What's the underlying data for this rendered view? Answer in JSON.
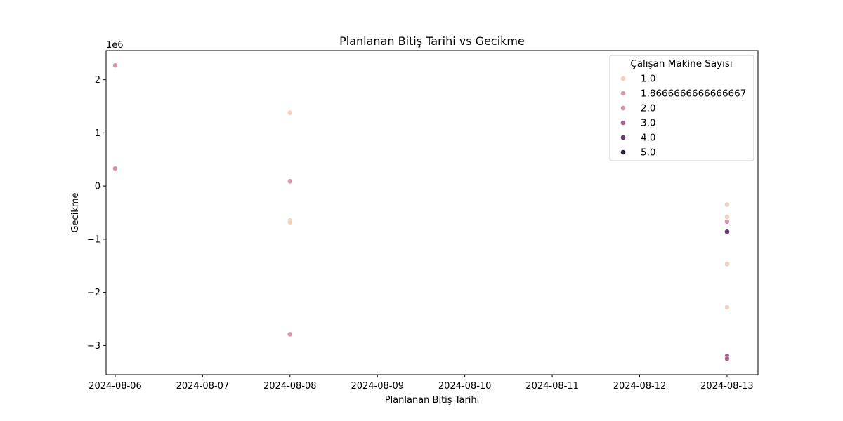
{
  "chart_data": {
    "type": "scatter",
    "title": "Planlanan Bitiş Tarihi vs Gecikme",
    "xlabel": "Planlanan Bitiş Tarihi",
    "ylabel": "Gecikme",
    "y_offset_label": "1e6",
    "x_ticks": [
      "2024-08-06",
      "2024-08-07",
      "2024-08-08",
      "2024-08-09",
      "2024-08-10",
      "2024-08-11",
      "2024-08-12",
      "2024-08-13"
    ],
    "y_ticks": [
      2,
      1,
      0,
      -1,
      -2,
      -3
    ],
    "y_tick_labels": [
      "2",
      "1",
      "0",
      "−1",
      "−2",
      "−3"
    ],
    "xlim": [
      "2024-08-05 21:30",
      "2024-08-13 08:30"
    ],
    "ylim": [
      -3.55,
      2.55
    ],
    "y_scale": "1e6",
    "grid": false,
    "legend": {
      "title": "Çalışan Makine Sayısı",
      "placement": "top-right",
      "entries": [
        {
          "label": "1.0",
          "color": "#efcfbe"
        },
        {
          "label": "1.8666666666666667",
          "color": "#d69aad"
        },
        {
          "label": "2.0",
          "color": "#d493ad"
        },
        {
          "label": "3.0",
          "color": "#a9628f"
        },
        {
          "label": "4.0",
          "color": "#6a3870"
        },
        {
          "label": "5.0",
          "color": "#2e1e3b"
        }
      ]
    },
    "points": [
      {
        "x": "2024-08-06",
        "y": 2.27,
        "hue": "1.8666666666666667"
      },
      {
        "x": "2024-08-06",
        "y": 0.33,
        "hue": "2.0"
      },
      {
        "x": "2024-08-08",
        "y": 1.38,
        "hue": "1.0"
      },
      {
        "x": "2024-08-08",
        "y": 0.09,
        "hue": "2.0"
      },
      {
        "x": "2024-08-08",
        "y": -0.65,
        "hue": "1.0"
      },
      {
        "x": "2024-08-08",
        "y": -0.68,
        "hue": "1.0"
      },
      {
        "x": "2024-08-08",
        "y": -2.79,
        "hue": "2.0"
      },
      {
        "x": "2024-08-13",
        "y": -0.35,
        "hue": "1.0"
      },
      {
        "x": "2024-08-13",
        "y": -0.58,
        "hue": "1.0"
      },
      {
        "x": "2024-08-13",
        "y": -0.67,
        "hue": "2.0"
      },
      {
        "x": "2024-08-13",
        "y": -0.86,
        "hue": "4.0"
      },
      {
        "x": "2024-08-13",
        "y": -1.47,
        "hue": "1.0"
      },
      {
        "x": "2024-08-13",
        "y": -2.28,
        "hue": "1.0"
      },
      {
        "x": "2024-08-13",
        "y": -3.2,
        "hue": "3.0"
      },
      {
        "x": "2024-08-13",
        "y": -3.25,
        "hue": "3.0"
      }
    ]
  }
}
